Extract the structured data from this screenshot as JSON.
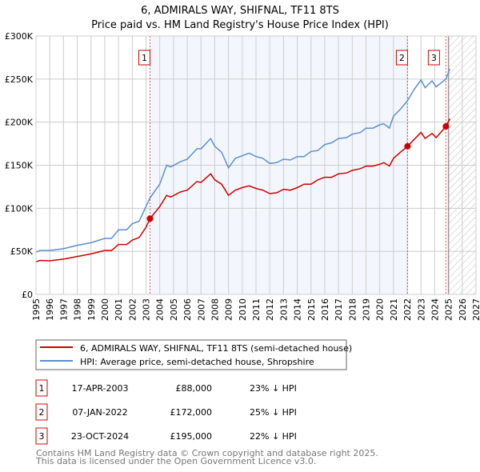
{
  "chart_data": {
    "type": "line",
    "title": "6, ADMIRALS WAY, SHIFNAL, TF11 8TS",
    "subtitle": "Price paid vs. HM Land Registry's House Price Index (HPI)",
    "xlim": [
      1995,
      2027
    ],
    "ylim": [
      0,
      300000
    ],
    "grid": true,
    "x_ticks": [
      "1995",
      "1996",
      "1997",
      "1998",
      "1999",
      "2000",
      "2001",
      "2002",
      "2003",
      "2004",
      "2005",
      "2006",
      "2007",
      "2008",
      "2009",
      "2010",
      "2011",
      "2012",
      "2013",
      "2014",
      "2015",
      "2016",
      "2017",
      "2018",
      "2019",
      "2020",
      "2021",
      "2022",
      "2023",
      "2024",
      "2025",
      "2026",
      "2027"
    ],
    "y_ticks": [
      {
        "v": 0,
        "label": "£0"
      },
      {
        "v": 50000,
        "label": "£50K"
      },
      {
        "v": 100000,
        "label": "£100K"
      },
      {
        "v": 150000,
        "label": "£150K"
      },
      {
        "v": 200000,
        "label": "£200K"
      },
      {
        "v": 250000,
        "label": "£250K"
      },
      {
        "v": 300000,
        "label": "£300K"
      }
    ],
    "shaded_range": [
      2003.29,
      2022.02
    ],
    "forecast_from": 2025.0,
    "series": [
      {
        "name": "6, ADMIRALS WAY, SHIFNAL, TF11 8TS (semi-detached house)",
        "color": "#cc0000",
        "points": [
          [
            1995,
            38000
          ],
          [
            1995.3,
            39500
          ],
          [
            1996,
            39000
          ],
          [
            1997,
            41000
          ],
          [
            1998,
            44000
          ],
          [
            1999,
            47000
          ],
          [
            2000,
            51000
          ],
          [
            2000.5,
            51000
          ],
          [
            2001,
            58000
          ],
          [
            2001.6,
            58000
          ],
          [
            2002,
            63000
          ],
          [
            2002.5,
            66000
          ],
          [
            2003,
            78000
          ],
          [
            2003.29,
            88000
          ],
          [
            2004,
            102000
          ],
          [
            2004.5,
            115000
          ],
          [
            2004.8,
            113000
          ],
          [
            2005.5,
            119000
          ],
          [
            2006,
            121000
          ],
          [
            2006.7,
            131000
          ],
          [
            2007,
            130000
          ],
          [
            2007.7,
            140000
          ],
          [
            2008,
            133000
          ],
          [
            2008.5,
            128000
          ],
          [
            2009,
            115000
          ],
          [
            2009.5,
            121000
          ],
          [
            2010,
            124000
          ],
          [
            2010.5,
            126000
          ],
          [
            2011,
            123000
          ],
          [
            2011.5,
            121000
          ],
          [
            2012,
            117000
          ],
          [
            2012.5,
            118000
          ],
          [
            2013,
            122000
          ],
          [
            2013.5,
            121000
          ],
          [
            2014,
            124000
          ],
          [
            2014.5,
            128000
          ],
          [
            2015,
            128000
          ],
          [
            2015.5,
            133000
          ],
          [
            2016,
            136000
          ],
          [
            2016.5,
            136000
          ],
          [
            2017,
            140000
          ],
          [
            2017.6,
            141000
          ],
          [
            2018,
            144000
          ],
          [
            2018.6,
            146000
          ],
          [
            2019,
            149000
          ],
          [
            2019.5,
            149000
          ],
          [
            2020,
            151000
          ],
          [
            2020.3,
            153000
          ],
          [
            2020.7,
            149000
          ],
          [
            2021,
            158000
          ],
          [
            2021.5,
            165000
          ],
          [
            2022.02,
            172000
          ],
          [
            2022.5,
            180000
          ],
          [
            2023,
            188000
          ],
          [
            2023.3,
            181000
          ],
          [
            2023.8,
            187000
          ],
          [
            2024.1,
            182000
          ],
          [
            2024.81,
            195000
          ],
          [
            2025.1,
            204000
          ]
        ]
      },
      {
        "name": "HPI: Average price, semi-detached house, Shropshire",
        "color": "#5b8fd1",
        "points": [
          [
            1995,
            49000
          ],
          [
            1995.3,
            51000
          ],
          [
            1996,
            51000
          ],
          [
            1997,
            53000
          ],
          [
            1998,
            57000
          ],
          [
            1999,
            60000
          ],
          [
            2000,
            65000
          ],
          [
            2000.5,
            65000
          ],
          [
            2001,
            75000
          ],
          [
            2001.6,
            75000
          ],
          [
            2002,
            82000
          ],
          [
            2002.5,
            85000
          ],
          [
            2003,
            102000
          ],
          [
            2003.29,
            112000
          ],
          [
            2004,
            128000
          ],
          [
            2004.5,
            150000
          ],
          [
            2004.8,
            148000
          ],
          [
            2005.5,
            154000
          ],
          [
            2006,
            157000
          ],
          [
            2006.7,
            169000
          ],
          [
            2007,
            169000
          ],
          [
            2007.7,
            181000
          ],
          [
            2008,
            172000
          ],
          [
            2008.5,
            165000
          ],
          [
            2009,
            147000
          ],
          [
            2009.5,
            158000
          ],
          [
            2010,
            161000
          ],
          [
            2010.5,
            164000
          ],
          [
            2011,
            160000
          ],
          [
            2011.5,
            158000
          ],
          [
            2012,
            152000
          ],
          [
            2012.5,
            153000
          ],
          [
            2013,
            157000
          ],
          [
            2013.5,
            156000
          ],
          [
            2014,
            160000
          ],
          [
            2014.5,
            160000
          ],
          [
            2015,
            166000
          ],
          [
            2015.5,
            167000
          ],
          [
            2016,
            174000
          ],
          [
            2016.5,
            176000
          ],
          [
            2017,
            181000
          ],
          [
            2017.6,
            182000
          ],
          [
            2018,
            186000
          ],
          [
            2018.6,
            188000
          ],
          [
            2019,
            193000
          ],
          [
            2019.5,
            193000
          ],
          [
            2020,
            197000
          ],
          [
            2020.3,
            198000
          ],
          [
            2020.7,
            193000
          ],
          [
            2021,
            207000
          ],
          [
            2021.5,
            215000
          ],
          [
            2022.02,
            225000
          ],
          [
            2022.5,
            238000
          ],
          [
            2023,
            249000
          ],
          [
            2023.3,
            240000
          ],
          [
            2023.8,
            248000
          ],
          [
            2024.1,
            241000
          ],
          [
            2024.81,
            250000
          ],
          [
            2025.1,
            262000
          ]
        ]
      }
    ],
    "sales": [
      {
        "id": "1",
        "year": 2003.29,
        "price": 88000,
        "date": "17-APR-2003",
        "price_label": "£88,000",
        "hpi": "23% ↓ HPI"
      },
      {
        "id": "2",
        "year": 2022.02,
        "price": 172000,
        "date": "07-JAN-2022",
        "price_label": "£172,000",
        "hpi": "25% ↓ HPI"
      },
      {
        "id": "3",
        "year": 2024.81,
        "price": 195000,
        "date": "23-OCT-2024",
        "price_label": "£195,000",
        "hpi": "22% ↓ HPI"
      }
    ],
    "legend_placement": "below"
  },
  "footer": {
    "line1": "Contains HM Land Registry data © Crown copyright and database right 2025.",
    "line2": "This data is licensed under the Open Government Licence v3.0."
  }
}
